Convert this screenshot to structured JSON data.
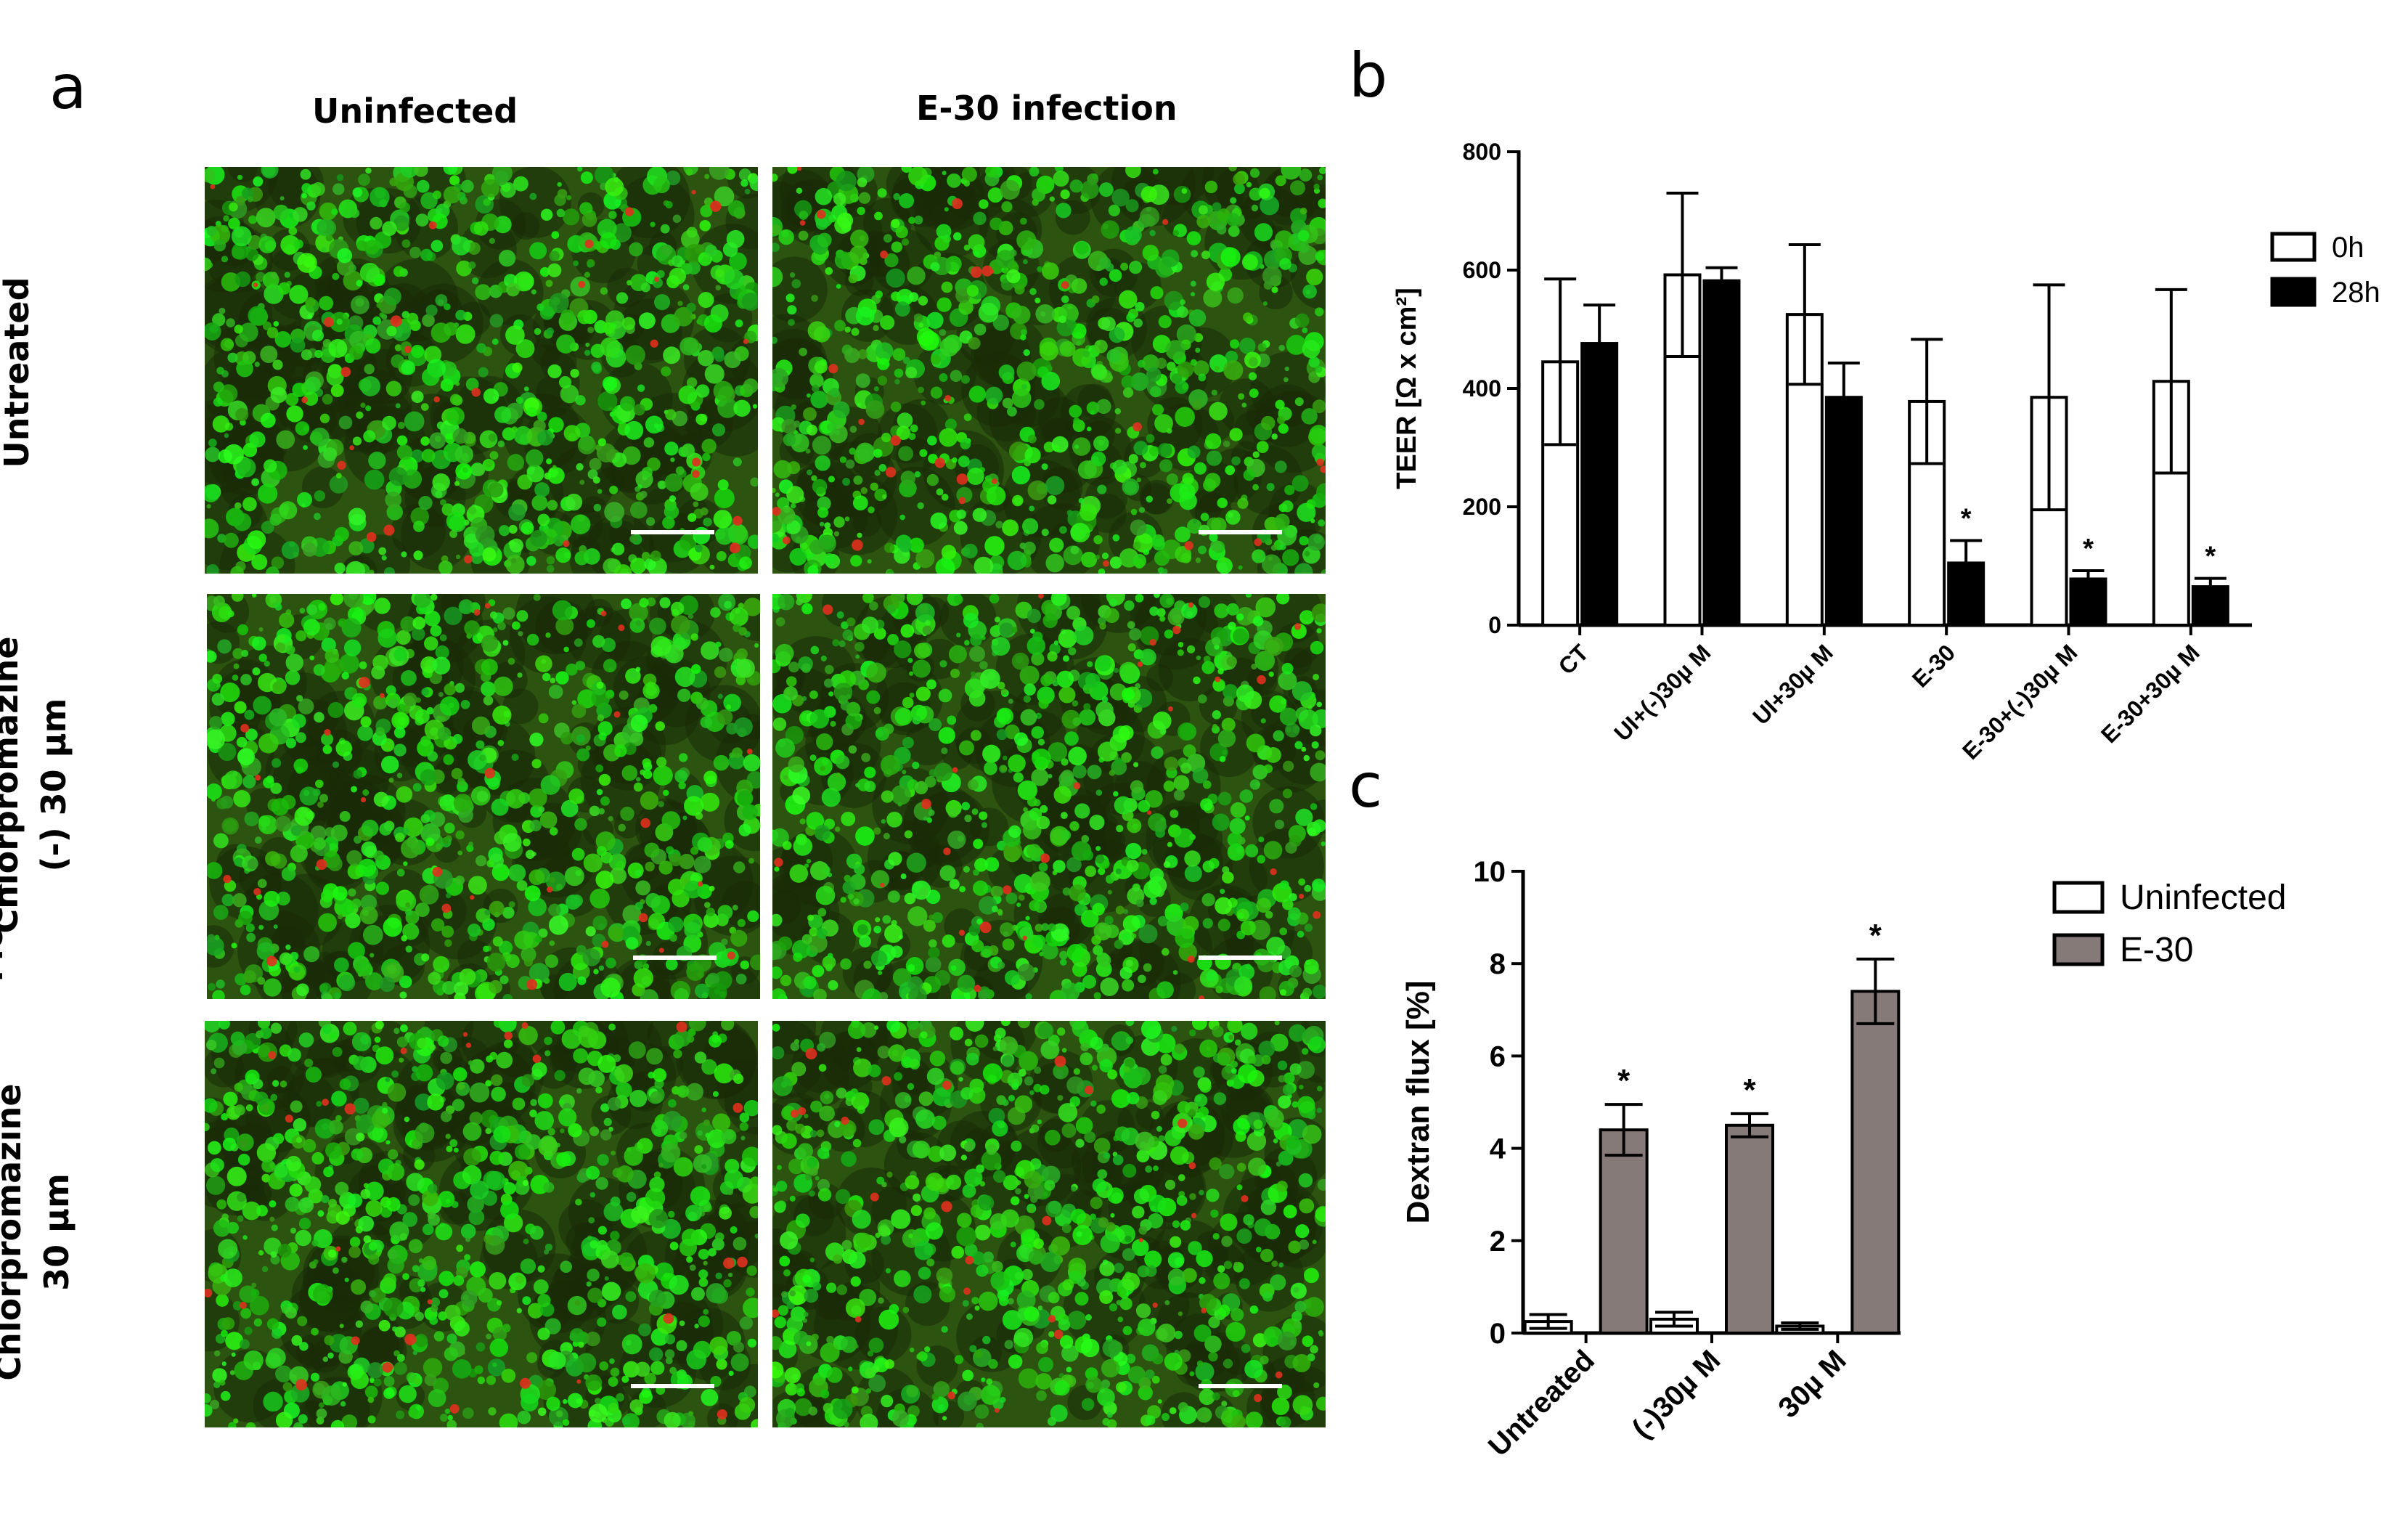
{
  "panel_a": {
    "letter": "a",
    "columns": [
      "Uninfected",
      "E-30 infection"
    ],
    "rows": [
      {
        "line1": "Untreated",
        "line2": ""
      },
      {
        "line1": "Chlorpromazine",
        "line2": "(-) 30 µm",
        "outer": "Mock"
      },
      {
        "line1": "Chlorpromazine",
        "line2": "30 µm"
      }
    ],
    "image_type": "fluorescence micrographs, green cells with red puncta, white scale bar"
  },
  "panel_b": {
    "letter": "b"
  },
  "panel_c": {
    "letter": "c"
  },
  "chart_data": [
    {
      "type": "bar",
      "panel": "b",
      "ylabel": "TEER [Ω x cm²]",
      "xlabel": "",
      "categories": [
        "CT",
        "UI+(-)30µ M",
        "UI+30µ M",
        "E-30",
        "E-30+(-)30µ M",
        "E-30+30µ M"
      ],
      "ylim": [
        0,
        800
      ],
      "yticks": [
        0,
        200,
        400,
        600,
        800
      ],
      "series": [
        {
          "name": "0h",
          "color": "#ffffff",
          "values": [
            445,
            592,
            525,
            378,
            385,
            412
          ],
          "errors": [
            140,
            138,
            118,
            105,
            190,
            155
          ]
        },
        {
          "name": "28h",
          "color": "#000000",
          "values": [
            476,
            582,
            385,
            105,
            78,
            65
          ],
          "errors": [
            65,
            22,
            58,
            38,
            14,
            14
          ]
        }
      ],
      "significance": [
        "",
        "",
        "",
        "*",
        "*",
        "*"
      ],
      "legend": "top-right",
      "grid": false
    },
    {
      "type": "bar",
      "panel": "c",
      "ylabel": "Dextran flux [%]",
      "xlabel": "",
      "categories": [
        "Untreated",
        "(-)30µ M",
        "30µ M"
      ],
      "ylim": [
        0,
        10
      ],
      "yticks": [
        0,
        2,
        4,
        6,
        8,
        10
      ],
      "series": [
        {
          "name": "Uninfected",
          "color": "#ffffff",
          "values": [
            0.25,
            0.3,
            0.15
          ],
          "errors": [
            0.15,
            0.15,
            0.07
          ]
        },
        {
          "name": "E-30",
          "color": "#857a78",
          "values": [
            4.4,
            4.5,
            7.4
          ],
          "errors": [
            0.55,
            0.25,
            0.7
          ]
        }
      ],
      "significance": [
        "*",
        "*",
        "*"
      ],
      "legend": "top-right",
      "grid": false
    }
  ]
}
